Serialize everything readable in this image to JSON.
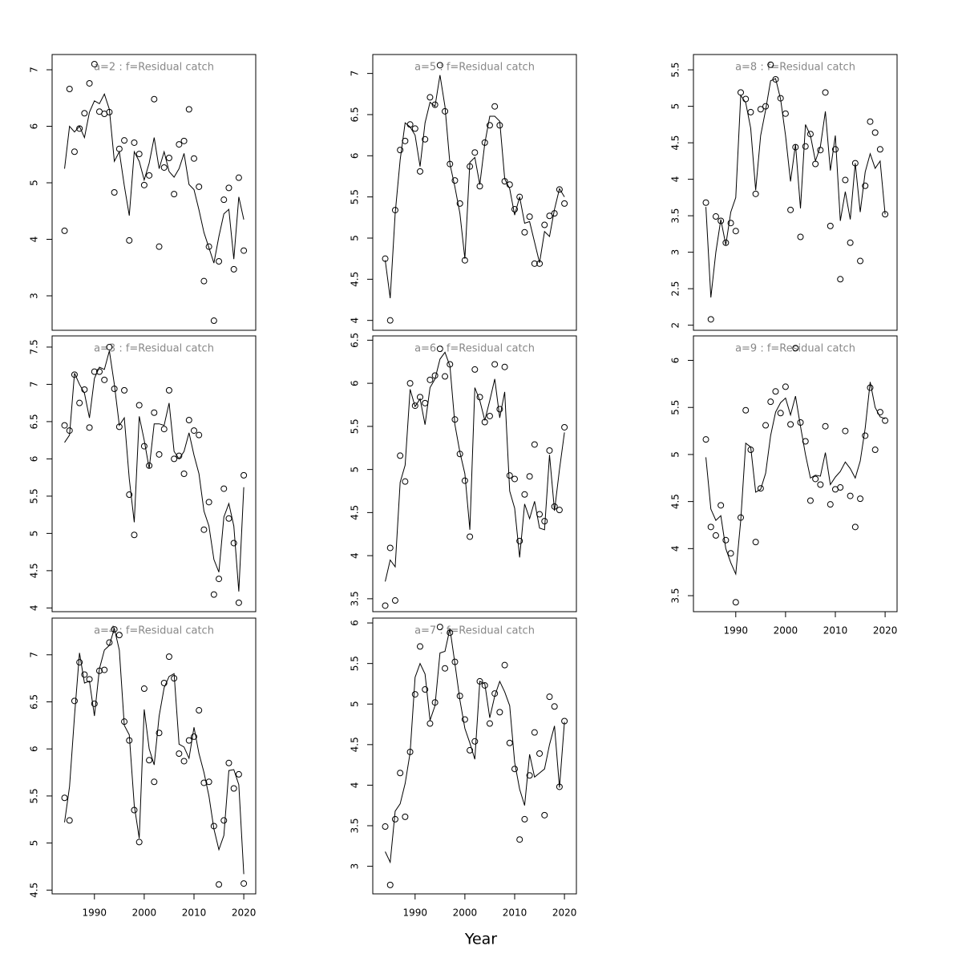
{
  "chart_data": [
    {
      "type": "line",
      "title": "a=2 : f=Residual catch",
      "x": [
        1984,
        1985,
        1986,
        1987,
        1988,
        1989,
        1990,
        1991,
        1992,
        1993,
        1994,
        1995,
        1996,
        1997,
        1998,
        1999,
        2000,
        2001,
        2002,
        2003,
        2004,
        2005,
        2006,
        2007,
        2008,
        2009,
        2010,
        2011,
        2012,
        2013,
        2014,
        2015,
        2016,
        2017,
        2018,
        2019,
        2020
      ],
      "xlim": [
        1981.5,
        2022.4
      ],
      "ylim": [
        2.39,
        7.27
      ],
      "yticks": [
        3,
        4,
        5,
        6,
        7
      ],
      "series": [
        {
          "mode": "points",
          "color": "#000000",
          "values": [
            4.15,
            6.66,
            5.55,
            5.96,
            6.23,
            6.76,
            7.1,
            6.26,
            6.22,
            6.25,
            4.83,
            5.6,
            5.75,
            3.98,
            5.71,
            5.51,
            4.96,
            5.13,
            6.48,
            3.87,
            5.27,
            5.44,
            4.8,
            5.68,
            5.74,
            6.3,
            5.43,
            4.93,
            3.26,
            3.87,
            2.56,
            3.61,
            4.7,
            4.91,
            3.47,
            5.09,
            3.8
          ]
        },
        {
          "mode": "line",
          "color": "#000000",
          "values": [
            5.25,
            6.0,
            5.9,
            6.0,
            5.8,
            6.25,
            6.45,
            6.4,
            6.57,
            6.3,
            5.38,
            5.55,
            4.95,
            4.42,
            5.55,
            5.38,
            5.05,
            5.35,
            5.8,
            5.25,
            5.55,
            5.2,
            5.1,
            5.25,
            5.52,
            4.97,
            4.88,
            4.52,
            4.12,
            3.85,
            3.58,
            4.05,
            4.45,
            4.53,
            3.65,
            4.75,
            4.35
          ]
        }
      ]
    },
    {
      "type": "line",
      "title": "a=3 : f=Residual catch",
      "x": [
        1984,
        1985,
        1986,
        1987,
        1988,
        1989,
        1990,
        1991,
        1992,
        1993,
        1994,
        1995,
        1996,
        1997,
        1998,
        1999,
        2000,
        2001,
        2002,
        2003,
        2004,
        2005,
        2006,
        2007,
        2008,
        2009,
        2010,
        2011,
        2012,
        2013,
        2014,
        2015,
        2016,
        2017,
        2018,
        2019,
        2020
      ],
      "xlim": [
        1981.5,
        2022.4
      ],
      "ylim": [
        3.95,
        7.65
      ],
      "yticks": [
        4.0,
        4.5,
        5.0,
        5.5,
        6.0,
        6.5,
        7.0,
        7.5
      ],
      "series": [
        {
          "mode": "points",
          "color": "#000000",
          "values": [
            6.45,
            6.38,
            7.13,
            6.75,
            6.93,
            6.42,
            7.17,
            7.17,
            7.06,
            7.5,
            6.94,
            6.43,
            6.92,
            5.52,
            4.98,
            6.72,
            6.17,
            5.91,
            6.62,
            6.06,
            6.4,
            6.92,
            6.0,
            6.04,
            5.8,
            6.52,
            6.38,
            6.32,
            5.05,
            5.42,
            4.18,
            4.39,
            5.6,
            5.2,
            4.87,
            4.07,
            5.78
          ]
        },
        {
          "mode": "line",
          "color": "#000000",
          "values": [
            6.22,
            6.32,
            7.15,
            7.0,
            6.88,
            6.55,
            7.08,
            7.23,
            7.2,
            7.45,
            7.0,
            6.45,
            6.55,
            5.73,
            5.15,
            6.57,
            6.25,
            5.87,
            6.47,
            6.47,
            6.45,
            6.75,
            6.1,
            6.0,
            6.1,
            6.35,
            6.05,
            5.8,
            5.3,
            5.1,
            4.65,
            4.48,
            5.22,
            5.4,
            5.1,
            4.22,
            5.62
          ]
        }
      ]
    },
    {
      "type": "line",
      "title": "a=4 : f=Residual catch",
      "x": [
        1984,
        1985,
        1986,
        1987,
        1988,
        1989,
        1990,
        1991,
        1992,
        1993,
        1994,
        1995,
        1996,
        1997,
        1998,
        1999,
        2000,
        2001,
        2002,
        2003,
        2004,
        2005,
        2006,
        2007,
        2008,
        2009,
        2010,
        2011,
        2012,
        2013,
        2014,
        2015,
        2016,
        2017,
        2018,
        2019,
        2020
      ],
      "xlim": [
        1981.5,
        2022.4
      ],
      "xticks": [
        1990,
        2000,
        2010,
        2020
      ],
      "ylim": [
        4.46,
        7.39
      ],
      "yticks": [
        4.5,
        5.0,
        5.5,
        6.0,
        6.5,
        7.0
      ],
      "series": [
        {
          "mode": "points",
          "color": "#000000",
          "values": [
            5.48,
            5.24,
            6.51,
            6.92,
            6.79,
            6.74,
            6.48,
            6.83,
            6.84,
            7.13,
            7.27,
            7.21,
            6.29,
            6.09,
            5.35,
            5.01,
            6.64,
            5.88,
            5.65,
            6.17,
            6.7,
            6.98,
            6.75,
            5.95,
            5.87,
            6.09,
            6.13,
            6.41,
            5.64,
            5.65,
            5.18,
            4.56,
            5.24,
            5.85,
            5.58,
            5.73,
            4.57
          ]
        },
        {
          "mode": "line",
          "color": "#000000",
          "values": [
            5.22,
            5.6,
            6.35,
            7.02,
            6.7,
            6.72,
            6.35,
            6.85,
            7.05,
            7.1,
            7.28,
            7.05,
            6.25,
            6.15,
            5.4,
            5.05,
            6.42,
            6.0,
            5.83,
            6.35,
            6.65,
            6.77,
            6.8,
            6.05,
            6.02,
            5.9,
            6.23,
            5.95,
            5.75,
            5.5,
            5.15,
            4.93,
            5.08,
            5.77,
            5.78,
            5.62,
            4.67
          ]
        }
      ]
    },
    {
      "type": "line",
      "title": "a=5 : f=Residual catch",
      "x": [
        1984,
        1985,
        1986,
        1987,
        1988,
        1989,
        1990,
        1991,
        1992,
        1993,
        1994,
        1995,
        1996,
        1997,
        1998,
        1999,
        2000,
        2001,
        2002,
        2003,
        2004,
        2005,
        2006,
        2007,
        2008,
        2009,
        2010,
        2011,
        2012,
        2013,
        2014,
        2015,
        2016,
        2017,
        2018,
        2019,
        2020
      ],
      "xlim": [
        1981.5,
        2022.4
      ],
      "ylim": [
        3.88,
        7.23
      ],
      "yticks": [
        4.0,
        4.5,
        5.0,
        5.5,
        6.0,
        6.5,
        7.0
      ],
      "series": [
        {
          "mode": "points",
          "color": "#000000",
          "values": [
            4.75,
            4.0,
            5.34,
            6.07,
            6.18,
            6.38,
            6.33,
            5.81,
            6.2,
            6.71,
            6.62,
            7.1,
            6.54,
            5.9,
            5.7,
            5.42,
            4.73,
            5.87,
            6.04,
            5.63,
            6.16,
            6.37,
            6.6,
            6.37,
            5.69,
            5.65,
            5.35,
            5.5,
            5.07,
            5.26,
            4.69,
            4.69,
            5.16,
            5.27,
            5.3,
            5.59,
            5.42
          ]
        },
        {
          "mode": "line",
          "color": "#000000",
          "values": [
            4.73,
            4.27,
            5.3,
            5.95,
            6.4,
            6.35,
            6.25,
            5.87,
            6.4,
            6.65,
            6.6,
            6.98,
            6.6,
            5.9,
            5.62,
            5.3,
            4.75,
            5.92,
            5.98,
            5.65,
            6.15,
            6.48,
            6.48,
            6.42,
            5.72,
            5.6,
            5.28,
            5.5,
            5.18,
            5.2,
            4.95,
            4.7,
            5.08,
            5.02,
            5.35,
            5.6,
            5.5
          ]
        }
      ]
    },
    {
      "type": "line",
      "title": "a=6 : f=Residual catch",
      "x": [
        1984,
        1985,
        1986,
        1987,
        1988,
        1989,
        1990,
        1991,
        1992,
        1993,
        1994,
        1995,
        1996,
        1997,
        1998,
        1999,
        2000,
        2001,
        2002,
        2003,
        2004,
        2005,
        2006,
        2007,
        2008,
        2009,
        2010,
        2011,
        2012,
        2013,
        2014,
        2015,
        2016,
        2017,
        2018,
        2019,
        2020
      ],
      "xlim": [
        1981.5,
        2022.4
      ],
      "ylim": [
        3.35,
        6.55
      ],
      "yticks": [
        3.5,
        4.0,
        4.5,
        5.0,
        5.5,
        6.0,
        6.5
      ],
      "series": [
        {
          "mode": "points",
          "color": "#000000",
          "values": [
            3.42,
            4.09,
            3.48,
            5.16,
            4.86,
            6.0,
            5.74,
            5.84,
            5.77,
            6.04,
            6.09,
            6.4,
            6.08,
            6.22,
            5.58,
            5.18,
            4.87,
            4.22,
            6.16,
            5.84,
            5.55,
            5.62,
            6.22,
            5.7,
            6.19,
            4.93,
            4.89,
            4.17,
            4.71,
            4.92,
            5.29,
            4.48,
            4.4,
            5.22,
            4.57,
            4.53,
            5.49
          ]
        },
        {
          "mode": "line",
          "color": "#000000",
          "values": [
            3.7,
            3.95,
            3.87,
            4.85,
            5.05,
            5.93,
            5.73,
            5.82,
            5.52,
            5.95,
            6.05,
            6.28,
            6.36,
            6.2,
            5.52,
            5.2,
            4.95,
            4.3,
            5.95,
            5.8,
            5.57,
            5.8,
            6.05,
            5.6,
            5.9,
            4.75,
            4.55,
            3.98,
            4.6,
            4.43,
            4.63,
            4.32,
            4.3,
            5.17,
            4.52,
            5.0,
            5.43
          ]
        }
      ]
    },
    {
      "type": "line",
      "title": "a=7 : f=Residual catch",
      "xlabel": "Year",
      "x": [
        1984,
        1985,
        1986,
        1987,
        1988,
        1989,
        1990,
        1991,
        1992,
        1993,
        1994,
        1995,
        1996,
        1997,
        1998,
        1999,
        2000,
        2001,
        2002,
        2003,
        2004,
        2005,
        2006,
        2007,
        2008,
        2009,
        2010,
        2011,
        2012,
        2013,
        2014,
        2015,
        2016,
        2017,
        2018,
        2019,
        2020
      ],
      "xlim": [
        1981.5,
        2022.4
      ],
      "xticks": [
        1990,
        2000,
        2010,
        2020
      ],
      "ylim": [
        2.66,
        6.06
      ],
      "yticks": [
        3.0,
        3.5,
        4.0,
        4.5,
        5.0,
        5.5,
        6.0
      ],
      "series": [
        {
          "mode": "points",
          "color": "#000000",
          "values": [
            3.49,
            2.77,
            3.58,
            4.15,
            3.61,
            4.41,
            5.12,
            5.71,
            5.18,
            4.76,
            5.02,
            5.95,
            5.44,
            5.88,
            5.52,
            5.1,
            4.81,
            4.43,
            4.54,
            5.28,
            5.23,
            4.76,
            5.13,
            4.9,
            5.48,
            4.52,
            4.2,
            3.33,
            3.58,
            4.12,
            4.65,
            4.39,
            3.63,
            5.09,
            4.97,
            3.98,
            4.79
          ]
        },
        {
          "mode": "line",
          "color": "#000000",
          "values": [
            3.18,
            3.05,
            3.68,
            3.77,
            4.02,
            4.4,
            5.33,
            5.5,
            5.37,
            4.8,
            4.98,
            5.63,
            5.65,
            5.93,
            5.5,
            5.05,
            4.7,
            4.52,
            4.32,
            5.28,
            5.25,
            4.83,
            5.1,
            5.28,
            5.15,
            4.98,
            4.28,
            3.95,
            3.75,
            4.38,
            4.1,
            4.15,
            4.2,
            4.5,
            4.73,
            3.97,
            4.78
          ]
        }
      ]
    },
    {
      "type": "line",
      "title": "a=8 : f=Residual catch",
      "x": [
        1984,
        1985,
        1986,
        1987,
        1988,
        1989,
        1990,
        1991,
        1992,
        1993,
        1994,
        1995,
        1996,
        1997,
        1998,
        1999,
        2000,
        2001,
        2002,
        2003,
        2004,
        2005,
        2006,
        2007,
        2008,
        2009,
        2010,
        2011,
        2012,
        2013,
        2014,
        2015,
        2016,
        2017,
        2018,
        2019,
        2020
      ],
      "xlim": [
        1981.5,
        2022.4
      ],
      "ylim": [
        1.93,
        5.71
      ],
      "yticks": [
        2.0,
        2.5,
        3.0,
        3.5,
        4.0,
        4.5,
        5.0,
        5.5
      ],
      "series": [
        {
          "mode": "points",
          "color": "#000000",
          "values": [
            3.68,
            2.08,
            3.49,
            3.43,
            3.13,
            3.4,
            3.29,
            5.19,
            5.1,
            4.92,
            3.8,
            4.96,
            5.0,
            5.57,
            5.37,
            5.11,
            4.9,
            3.58,
            4.44,
            3.21,
            4.45,
            4.62,
            4.21,
            4.4,
            5.19,
            3.36,
            4.41,
            2.63,
            3.99,
            3.13,
            4.22,
            2.88,
            3.91,
            4.79,
            4.64,
            4.41,
            3.52
          ]
        },
        {
          "mode": "line",
          "color": "#000000",
          "values": [
            3.62,
            2.38,
            3.0,
            3.45,
            3.1,
            3.55,
            3.75,
            5.15,
            5.05,
            4.7,
            3.85,
            4.6,
            4.95,
            5.35,
            5.38,
            5.1,
            4.6,
            3.97,
            4.48,
            3.6,
            4.75,
            4.6,
            4.25,
            4.45,
            4.93,
            4.12,
            4.6,
            3.43,
            3.83,
            3.45,
            4.22,
            3.55,
            4.1,
            4.35,
            4.15,
            4.25,
            3.52
          ]
        }
      ]
    },
    {
      "type": "line",
      "title": "a=9 : f=Residual catch",
      "x": [
        1984,
        1985,
        1986,
        1987,
        1988,
        1989,
        1990,
        1991,
        1992,
        1993,
        1994,
        1995,
        1996,
        1997,
        1998,
        1999,
        2000,
        2001,
        2002,
        2003,
        2004,
        2005,
        2006,
        2007,
        2008,
        2009,
        2010,
        2011,
        2012,
        2013,
        2014,
        2015,
        2016,
        2017,
        2018,
        2019,
        2020
      ],
      "xlim": [
        1981.5,
        2022.4
      ],
      "xticks": [
        1990,
        2000,
        2010,
        2020
      ],
      "ylim": [
        3.33,
        6.26
      ],
      "yticks": [
        3.5,
        4.0,
        4.5,
        5.0,
        5.5,
        6.0
      ],
      "series": [
        {
          "mode": "points",
          "color": "#000000",
          "values": [
            5.16,
            4.23,
            4.14,
            4.46,
            4.09,
            3.95,
            3.43,
            4.33,
            5.47,
            5.05,
            4.07,
            4.64,
            5.31,
            5.56,
            5.67,
            5.44,
            5.72,
            5.32,
            6.13,
            5.34,
            5.14,
            4.51,
            4.74,
            4.68,
            5.3,
            4.47,
            4.63,
            4.65,
            5.25,
            4.56,
            4.23,
            4.53,
            5.2,
            5.71,
            5.05,
            5.45,
            5.36
          ]
        },
        {
          "mode": "line",
          "color": "#000000",
          "values": [
            4.97,
            4.42,
            4.3,
            4.35,
            4.0,
            3.85,
            3.73,
            4.3,
            5.12,
            5.08,
            4.6,
            4.63,
            4.8,
            5.2,
            5.45,
            5.55,
            5.6,
            5.42,
            5.62,
            5.3,
            5.0,
            4.75,
            4.78,
            4.77,
            5.02,
            4.68,
            4.76,
            4.82,
            4.92,
            4.85,
            4.75,
            4.93,
            5.28,
            5.77,
            5.5,
            5.4,
            5.38
          ]
        }
      ]
    }
  ]
}
